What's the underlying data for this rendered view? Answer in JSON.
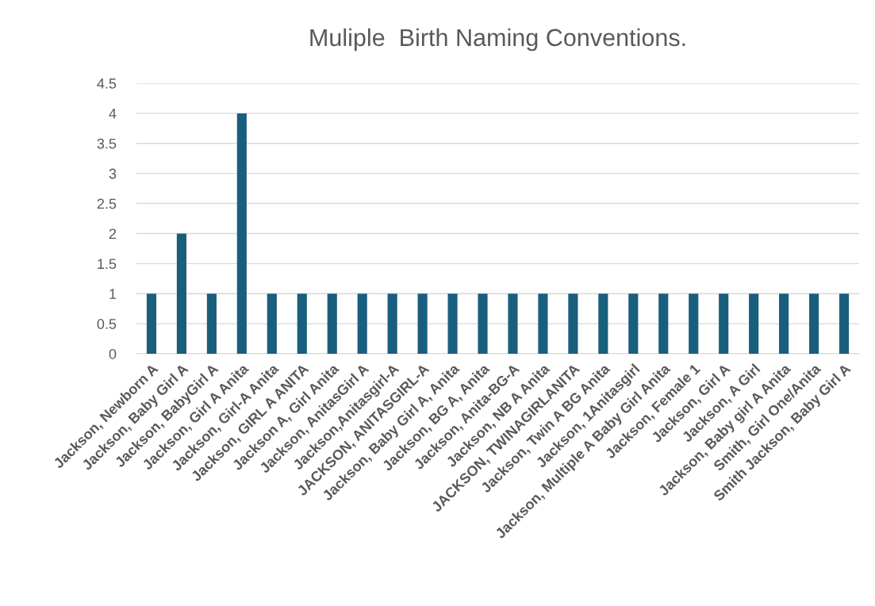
{
  "chart_data": {
    "type": "bar",
    "title": "Muliple  Birth Naming Conventions.",
    "categories": [
      "Jackson, Newborn A",
      "Jackson, Baby Girl A",
      "Jackson, BabyGirl A",
      "Jackson, Girl A Anita",
      "Jackson, Girl-A Anita",
      "Jackson, GIRL A ANITA",
      "Jackson A, Girl Anita",
      "Jackson, AnitasGirl A",
      "Jackson,Anitasgirl-A",
      "JACKSON, ANITASGIRL-A",
      "Jackson, Baby Girl A, Anita",
      "Jackson, BG A, Anita",
      "Jackson, Anita-BG-A",
      "Jackson, NB A Anita",
      "JACKSON, TWINAGIRLANITA",
      "Jackson, Twin A BG Anita",
      "Jackson, 1Anitasgirl",
      "Jackson, Multiple A Baby Girl Anita",
      "Jackson, Female 1",
      "Jackson, Girl A",
      "Jackson, A Girl",
      "Jackson, Baby girl A Anita",
      "Smith, Girl One/Anita",
      "Smith Jackson, Baby Girl A"
    ],
    "values": [
      1,
      2,
      1,
      4,
      1,
      1,
      1,
      1,
      1,
      1,
      1,
      1,
      1,
      1,
      1,
      1,
      1,
      1,
      1,
      1,
      1,
      1,
      1,
      1
    ],
    "color": "#1a5e7e",
    "ylim": [
      0,
      4.5
    ],
    "yticks": [
      0,
      0.5,
      1,
      1.5,
      2,
      2.5,
      3,
      3.5,
      4,
      4.5
    ],
    "grid": "y"
  }
}
